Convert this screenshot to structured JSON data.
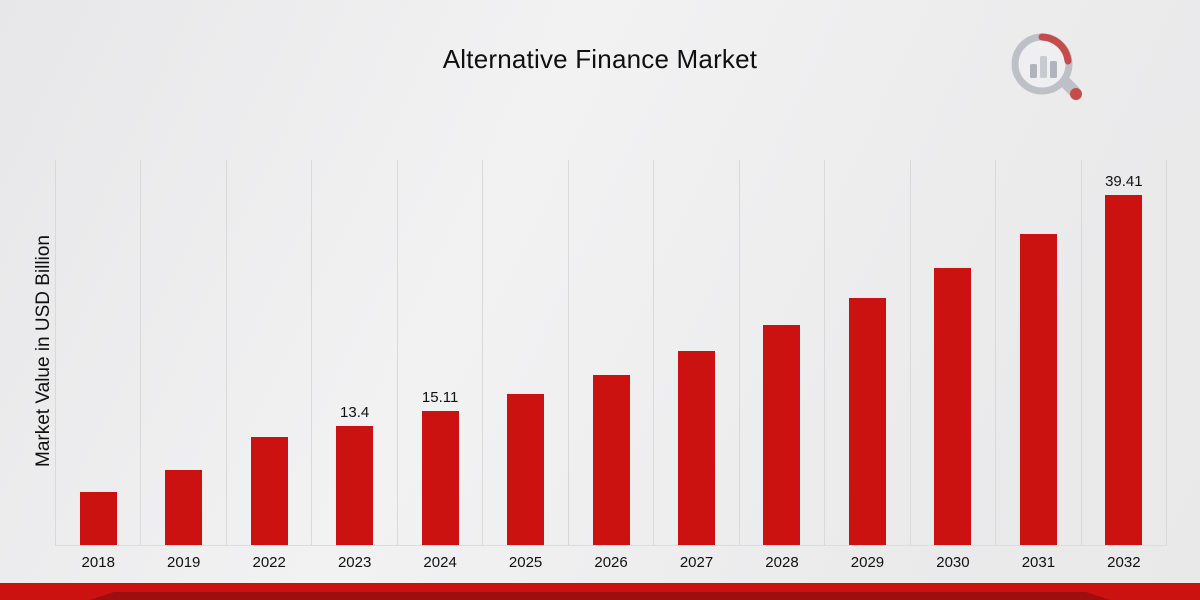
{
  "chart_data": {
    "type": "bar",
    "title": "Alternative Finance Market",
    "xlabel": "",
    "ylabel": "Market Value in USD Billion",
    "categories": [
      "2018",
      "2019",
      "2022",
      "2023",
      "2024",
      "2025",
      "2026",
      "2027",
      "2028",
      "2029",
      "2030",
      "2031",
      "2032"
    ],
    "values": [
      6.0,
      8.45,
      12.15,
      13.4,
      15.11,
      17.0,
      19.1,
      21.8,
      24.7,
      27.8,
      31.2,
      35.0,
      39.41
    ],
    "labels": [
      "",
      "",
      "",
      "13.4",
      "15.11",
      "",
      "",
      "",
      "",
      "",
      "",
      "",
      "39.41"
    ],
    "ylim": [
      0,
      43.3
    ],
    "bar_color": "#cc1111",
    "grid": "vertical",
    "legend": "none"
  },
  "branding": {
    "logo_icon": "magnifier-bar-chart-icon"
  }
}
